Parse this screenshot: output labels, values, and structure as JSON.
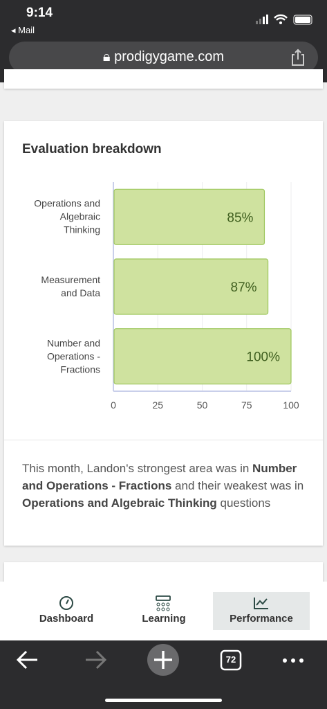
{
  "status_bar": {
    "time": "9:14",
    "back_app": "Mail"
  },
  "browser": {
    "url": "prodigygame.com",
    "tab_count": "72"
  },
  "chart_data": {
    "type": "bar",
    "orientation": "horizontal",
    "title": "Evaluation breakdown",
    "categories": [
      "Operations and Algebraic Thinking",
      "Measurement and Data",
      "Number and Operations - Fractions"
    ],
    "values": [
      85,
      87,
      100
    ],
    "value_labels": [
      "85%",
      "87%",
      "100%"
    ],
    "color": "#cfe29f",
    "xlim": [
      0,
      100
    ],
    "xticks": [
      0,
      25,
      50,
      75,
      100
    ],
    "grid": true
  },
  "summary": {
    "parts": [
      {
        "text": "This month, Landon's strongest area was in ",
        "bold": false
      },
      {
        "text": "Number and Operations - Fractions",
        "bold": true
      },
      {
        "text": " and their weakest was in ",
        "bold": false
      },
      {
        "text": "Operations and Algebraic Thinking",
        "bold": true
      },
      {
        "text": " questions",
        "bold": false
      }
    ]
  },
  "nav": {
    "items": [
      "Dashboard",
      "Learning",
      "Performance"
    ],
    "active": 2
  }
}
